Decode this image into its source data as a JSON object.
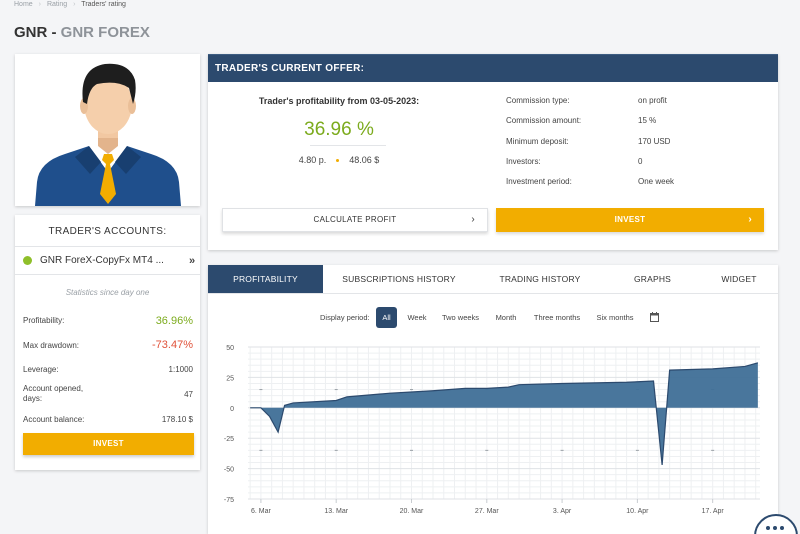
{
  "breadcrumb": {
    "items": [
      "Home",
      "Rating",
      "Traders' rating"
    ],
    "separator": "›"
  },
  "title": {
    "prefix": "GNR - ",
    "name": "GNR FOREX"
  },
  "accounts": {
    "title": "TRADER'S ACCOUNTS:",
    "account_name": "GNR ForeX-CopyFx MT4 ...",
    "status_color": "#8fbf2a",
    "stats_since": "Statistics since day one",
    "stats": [
      {
        "label": "Profitability:",
        "value": "36.96%",
        "style": "big-green"
      },
      {
        "label": "Max drawdown:",
        "value": "-73.47%",
        "style": "big-red"
      },
      {
        "label": "Leverage:",
        "value": "1:1000",
        "style": ""
      },
      {
        "label": "Account opened, days:",
        "value": "47",
        "style": ""
      },
      {
        "label": "Account balance:",
        "value": "178.10 $",
        "style": ""
      }
    ],
    "invest_label": "INVEST"
  },
  "offer": {
    "header": "TRADER'S CURRENT OFFER:",
    "profit_title": "Trader's profitability from 03-05-2023:",
    "profit_value": "36.96 %",
    "profit_points": "4.80 p.",
    "profit_money": "48.06 $",
    "params": [
      {
        "k": "Commission type:",
        "v": "on profit"
      },
      {
        "k": "Commission amount:",
        "v": "15 %"
      },
      {
        "k": "Minimum deposit:",
        "v": "170 USD"
      },
      {
        "k": "Investors:",
        "v": "0"
      },
      {
        "k": "Investment period:",
        "v": "One week"
      }
    ],
    "calc_label": "CALCULATE PROFIT",
    "invest_label": "INVEST",
    "chevron": "›"
  },
  "tabs": [
    "PROFITABILITY",
    "SUBSCRIPTIONS HISTORY",
    "TRADING HISTORY",
    "GRAPHS",
    "WIDGET"
  ],
  "periods": {
    "label": "Display period:",
    "options": [
      "All",
      "Week",
      "Two weeks",
      "Month",
      "Three months",
      "Six months"
    ],
    "selected": "All"
  },
  "colors": {
    "accent": "#2c4a6e",
    "invest": "#f2ad00",
    "positive": "#7cab1d",
    "negative": "#e0523a",
    "area": "#3f6f97"
  },
  "chart_data": {
    "type": "area",
    "y_ticks": [
      50,
      25,
      0,
      -25,
      -50,
      -75
    ],
    "ylim": [
      -75,
      50
    ],
    "x_labels": [
      "6. Mar",
      "13. Mar",
      "20. Mar",
      "27. Mar",
      "3. Apr",
      "10. Apr",
      "17. Apr"
    ],
    "x_label_days": [
      0,
      7,
      14,
      21,
      28,
      35,
      42
    ],
    "x_range_days": [
      -1.2,
      46.4
    ],
    "series": [
      {
        "x": [
          -1,
          0,
          0.8,
          1.6,
          2.2,
          3,
          7,
          8,
          12,
          14,
          16,
          19,
          21,
          23,
          24,
          28,
          34,
          36.5,
          37.3,
          38,
          42,
          45,
          46.2
        ],
        "y": [
          0,
          0,
          -7,
          -20,
          2,
          4,
          6,
          9,
          12,
          13,
          14,
          16,
          16,
          17,
          19,
          20,
          21,
          22,
          -47,
          31,
          32,
          34,
          37
        ]
      }
    ]
  }
}
